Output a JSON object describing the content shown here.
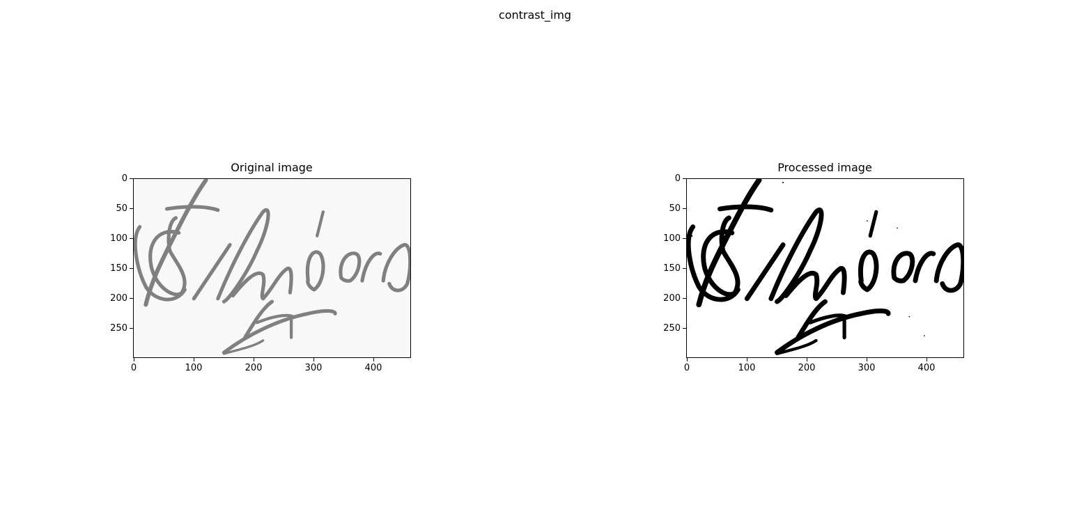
{
  "figure": {
    "suptitle": "contrast_img"
  },
  "panels": [
    {
      "title": "Original image",
      "x_ticks": [
        "0",
        "100",
        "200",
        "300",
        "400"
      ],
      "y_ticks": [
        "0",
        "50",
        "100",
        "150",
        "200",
        "250"
      ],
      "image": "handwritten signature, grey strokes on light background",
      "stroke_color": "#808080",
      "background_color": "#f8f8f8"
    },
    {
      "title": "Processed image",
      "x_ticks": [
        "0",
        "100",
        "200",
        "300",
        "400"
      ],
      "y_ticks": [
        "0",
        "50",
        "100",
        "150",
        "200",
        "250"
      ],
      "image": "same signature after contrast enhancement, black strokes on white",
      "stroke_color": "#000000",
      "background_color": "#ffffff"
    }
  ]
}
